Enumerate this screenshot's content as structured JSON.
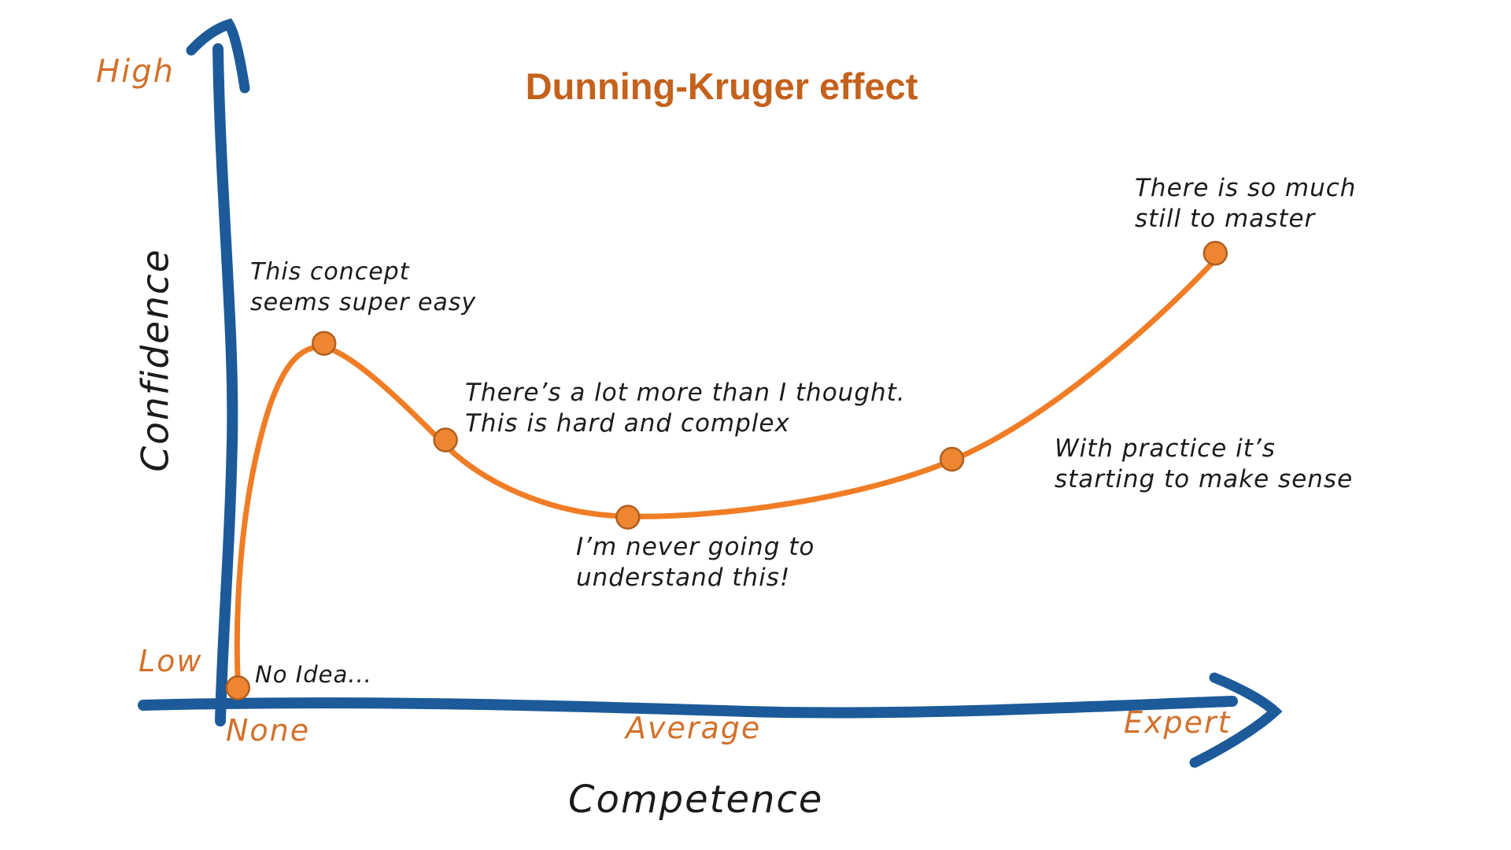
{
  "title": "Dunning-Kruger effect",
  "colors": {
    "axis_blue": "#1c5a99",
    "curve_orange": "#f07d26",
    "dot_fill": "#ed8531",
    "dot_stroke": "#b06020",
    "title_orange": "#c4611c",
    "label_orange": "#d2712c",
    "text_black": "#1b1b1b",
    "background": "#ffffff"
  },
  "axes": {
    "y_label": "Confidence",
    "x_label": "Competence",
    "y_ticks": [
      "High",
      "Low"
    ],
    "x_ticks": [
      "None",
      "Average",
      "Expert"
    ]
  },
  "annotations": [
    {
      "id": "this-concept",
      "lines": [
        "This concept",
        "seems super easy"
      ]
    },
    {
      "id": "a-lot-more",
      "lines": [
        "There’s a lot more than I thought.",
        "This is hard and complex"
      ]
    },
    {
      "id": "never-understand",
      "lines": [
        "I’m never going to",
        "understand this!"
      ]
    },
    {
      "id": "with-practice",
      "lines": [
        "With practice it’s",
        "starting to make sense"
      ]
    },
    {
      "id": "so-much",
      "lines": [
        "There is so much",
        "still to master"
      ]
    },
    {
      "id": "no-idea",
      "lines": [
        "No Idea..."
      ]
    }
  ],
  "chart_data": {
    "type": "line",
    "title": "Dunning-Kruger effect",
    "xlabel": "Competence",
    "ylabel": "Confidence",
    "x_tick_labels": [
      "None",
      "Average",
      "Expert"
    ],
    "y_tick_labels": [
      "Low",
      "High"
    ],
    "xlim": [
      0,
      100
    ],
    "ylim": [
      0,
      100
    ],
    "grid": false,
    "legend": null,
    "series_color": "#f07d26",
    "points": [
      {
        "x": 1.5,
        "y": 0.5,
        "label": "No Idea..."
      },
      {
        "x": 10,
        "y": 54,
        "label": "This concept seems super easy"
      },
      {
        "x": 22,
        "y": 39,
        "label": "There's a lot more than I thought. This is hard and complex"
      },
      {
        "x": 40,
        "y": 27,
        "label": "I'm never going to understand this!"
      },
      {
        "x": 72,
        "y": 36,
        "label": "With practice it's starting to make sense"
      },
      {
        "x": 98,
        "y": 68,
        "label": "There is so much still to master"
      }
    ]
  }
}
